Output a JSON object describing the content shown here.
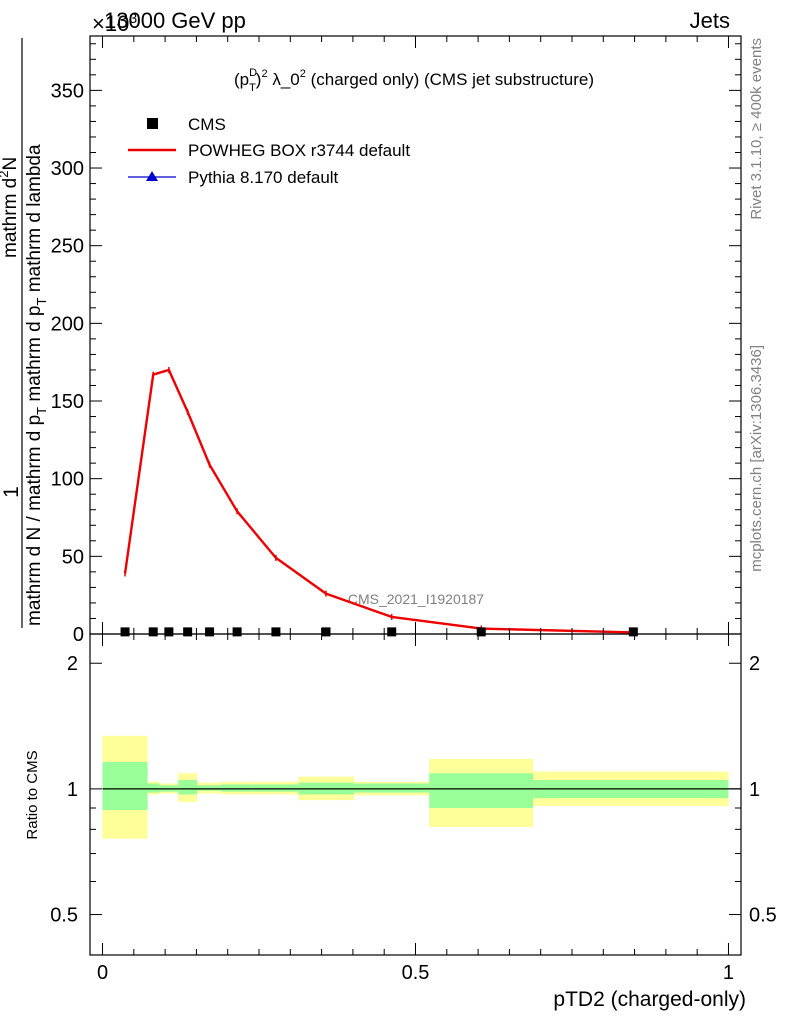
{
  "header": {
    "energy": "13000 GeV pp",
    "process": "Jets",
    "exponent": "×10",
    "exponent_power": "3"
  },
  "side_labels": {
    "rivet": "Rivet 3.1.10, ≥ 400k events",
    "mcplots": "mcplots.cern.ch [arXiv:1306.3436]"
  },
  "watermark": "CMS_2021_I1920187",
  "upper_panel": {
    "title_prefix": "(p",
    "title_sup": "D",
    "title_sub": "T",
    "title_mid": ")",
    "title_sq": "2",
    "title_lambda": " λ_0",
    "title_sq2": "2",
    "title_rest": " (charged only) (CMS jet substructure)",
    "ylabel_one": "1",
    "ylabel_num": "mathrm dN",
    "ylabel_den_main": "mathrm d N / mathrm d p",
    "ylabel_den_sub": "T",
    "ylabel_den_tail": " mathrm d p",
    "ylabel_den_sub2": "T",
    "ylabel_den_end": " mathrm d lambda",
    "ylabel_num_top": "mathrm d",
    "ylabel_num_sup": "2",
    "ylabel_num_n": "N"
  },
  "legend": {
    "items": [
      {
        "label": "CMS",
        "color": "#000000",
        "marker": "square"
      },
      {
        "label": "POWHEG BOX r3744 default",
        "color": "#ee0000",
        "marker": "line"
      },
      {
        "label": "Pythia 8.170 default",
        "color": "#0000cc",
        "marker": "triangle"
      }
    ]
  },
  "lower_panel": {
    "ylabel": "Ratio to CMS",
    "band_inner_color": "#99ff99",
    "band_outer_color": "#ffff99"
  },
  "xaxis_label": "pTD2 (charged-only)",
  "chart_data": [
    {
      "type": "line",
      "panel": "main",
      "xlim": [
        -0.02,
        1.02
      ],
      "ylim": [
        0,
        385
      ],
      "yticks": [
        0,
        50,
        100,
        150,
        200,
        250,
        300,
        350
      ],
      "ytick_labels": [
        "0",
        "50",
        "100",
        "150",
        "200",
        "250",
        "300",
        "350"
      ],
      "series": [
        {
          "name": "POWHEG BOX r3744 default",
          "color": "#ee0000",
          "x": [
            0.036,
            0.081,
            0.106,
            0.136,
            0.171,
            0.215,
            0.277,
            0.357,
            0.462,
            0.605,
            0.848
          ],
          "y": [
            39,
            167,
            170,
            143,
            109,
            79,
            49,
            26,
            11,
            3.5,
            1
          ]
        },
        {
          "name": "CMS",
          "color": "#000000",
          "x": [
            0.036,
            0.081,
            0.106,
            0.136,
            0.171,
            0.215,
            0.277,
            0.357,
            0.462,
            0.605,
            0.848
          ],
          "y": [
            0.4,
            0.4,
            0.4,
            0.4,
            0.4,
            0.4,
            0.4,
            0.4,
            0.4,
            0.4,
            0.4
          ]
        }
      ]
    },
    {
      "type": "area",
      "panel": "ratio",
      "xlim": [
        -0.02,
        1.02
      ],
      "ylim": [
        0.4,
        2.35
      ],
      "log_scale": true,
      "yticks": [
        0.5,
        1,
        2
      ],
      "ytick_labels": [
        "0.5",
        "1",
        "2"
      ],
      "xticks": [
        0,
        0.5,
        1
      ],
      "xtick_labels": [
        "0",
        "0.5",
        "1"
      ],
      "bins": [
        {
          "lo": 0.0,
          "hi": 0.072,
          "in_lo": 0.89,
          "in_hi": 1.16,
          "out_lo": 0.76,
          "out_hi": 1.34
        },
        {
          "lo": 0.072,
          "hi": 0.091,
          "in_lo": 0.98,
          "in_hi": 1.03,
          "out_lo": 0.97,
          "out_hi": 1.04
        },
        {
          "lo": 0.091,
          "hi": 0.121,
          "in_lo": 0.985,
          "in_hi": 1.02,
          "out_lo": 0.975,
          "out_hi": 1.03
        },
        {
          "lo": 0.121,
          "hi": 0.151,
          "in_lo": 0.97,
          "in_hi": 1.05,
          "out_lo": 0.93,
          "out_hi": 1.09
        },
        {
          "lo": 0.151,
          "hi": 0.19,
          "in_lo": 0.99,
          "in_hi": 1.02,
          "out_lo": 0.975,
          "out_hi": 1.035
        },
        {
          "lo": 0.19,
          "hi": 0.24,
          "in_lo": 0.985,
          "in_hi": 1.025,
          "out_lo": 0.97,
          "out_hi": 1.04
        },
        {
          "lo": 0.24,
          "hi": 0.313,
          "in_lo": 0.985,
          "in_hi": 1.025,
          "out_lo": 0.97,
          "out_hi": 1.04
        },
        {
          "lo": 0.313,
          "hi": 0.402,
          "in_lo": 0.97,
          "in_hi": 1.035,
          "out_lo": 0.94,
          "out_hi": 1.07
        },
        {
          "lo": 0.402,
          "hi": 0.522,
          "in_lo": 0.98,
          "in_hi": 1.03,
          "out_lo": 0.965,
          "out_hi": 1.04
        },
        {
          "lo": 0.522,
          "hi": 0.688,
          "in_lo": 0.9,
          "in_hi": 1.09,
          "out_lo": 0.81,
          "out_hi": 1.18
        },
        {
          "lo": 0.688,
          "hi": 1.0,
          "in_lo": 0.95,
          "in_hi": 1.05,
          "out_lo": 0.91,
          "out_hi": 1.1
        }
      ]
    }
  ]
}
